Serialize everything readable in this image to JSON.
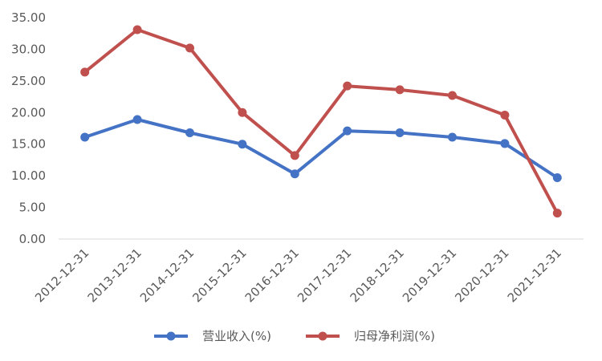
{
  "chart_data": {
    "type": "line",
    "title": "",
    "xlabel": "",
    "ylabel": "",
    "categories": [
      "2012-12-31",
      "2013-12-31",
      "2014-12-31",
      "2015-12-31",
      "2016-12-31",
      "2017-12-31",
      "2018-12-31",
      "2019-12-31",
      "2020-12-31",
      "2021-12-31"
    ],
    "ylim": [
      0,
      35
    ],
    "yticks": [
      "0.00",
      "5.00",
      "10.00",
      "15.00",
      "20.00",
      "25.00",
      "30.00",
      "35.00"
    ],
    "grid": false,
    "legend_position": "bottom",
    "series": [
      {
        "name": "营业收入(%)",
        "color": "#4472C4",
        "values": [
          16.1,
          18.9,
          16.8,
          15.0,
          10.3,
          17.1,
          16.8,
          16.1,
          15.1,
          9.7
        ]
      },
      {
        "name": "归母净利润(%)",
        "color": "#C0504D",
        "values": [
          26.4,
          33.1,
          30.2,
          20.0,
          13.2,
          24.2,
          23.6,
          22.7,
          19.6,
          4.1
        ]
      }
    ]
  }
}
